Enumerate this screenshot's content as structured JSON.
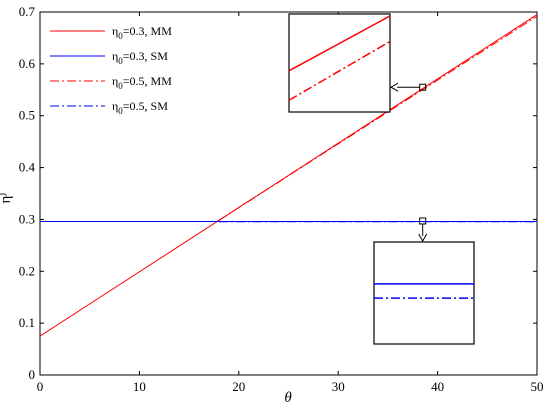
{
  "chart_data": {
    "type": "line",
    "xlabel": "θ",
    "ylabel": "η",
    "ylabel_sup": "j",
    "xlim": [
      0,
      50
    ],
    "ylim": [
      0,
      0.7
    ],
    "xticks": [
      0,
      10,
      20,
      30,
      40,
      50
    ],
    "yticks": [
      0,
      0.1,
      0.2,
      0.3,
      0.4,
      0.5,
      0.6,
      0.7
    ],
    "xtick_labels": [
      "0",
      "10",
      "20",
      "30",
      "40",
      "50"
    ],
    "ytick_labels": [
      "0",
      "0.1",
      "0.2",
      "0.3",
      "0.4",
      "0.5",
      "0.6",
      "0.7"
    ],
    "grid": false,
    "legend_position": "top-left",
    "series": [
      {
        "name": "η0=0.3, MM",
        "name_parts": {
          "sym": "η",
          "sub": "0",
          "rest": "=0.3, MM"
        },
        "color": "#ff0000",
        "dash": "solid",
        "x": [
          0,
          50
        ],
        "y": [
          0.075,
          0.695
        ]
      },
      {
        "name": "η0=0.3, SM",
        "name_parts": {
          "sym": "η",
          "sub": "0",
          "rest": "=0.3, SM"
        },
        "color": "#0000ff",
        "dash": "solid",
        "x": [
          0,
          50
        ],
        "y": [
          0.296,
          0.296
        ]
      },
      {
        "name": "η0=0.5, MM",
        "name_parts": {
          "sym": "η",
          "sub": "0",
          "rest": "=0.5, MM"
        },
        "color": "#ff0000",
        "dash": "dashdot",
        "x": [
          18,
          50
        ],
        "y": [
          0.2982,
          0.6918
        ]
      },
      {
        "name": "η0=0.5, SM",
        "name_parts": {
          "sym": "η",
          "sub": "0",
          "rest": "=0.5, SM"
        },
        "color": "#0000ff",
        "dash": "dashdot",
        "x": [
          18,
          50
        ],
        "y": [
          0.2955,
          0.2955
        ]
      }
    ],
    "insets": [
      {
        "target": {
          "x": 38.5,
          "y": 0.555
        },
        "shows": [
          "η0=0.3, MM",
          "η0=0.5, MM"
        ]
      },
      {
        "target": {
          "x": 38.5,
          "y": 0.297
        },
        "shows": [
          "η0=0.3, SM",
          "η0=0.5, SM"
        ]
      }
    ]
  }
}
